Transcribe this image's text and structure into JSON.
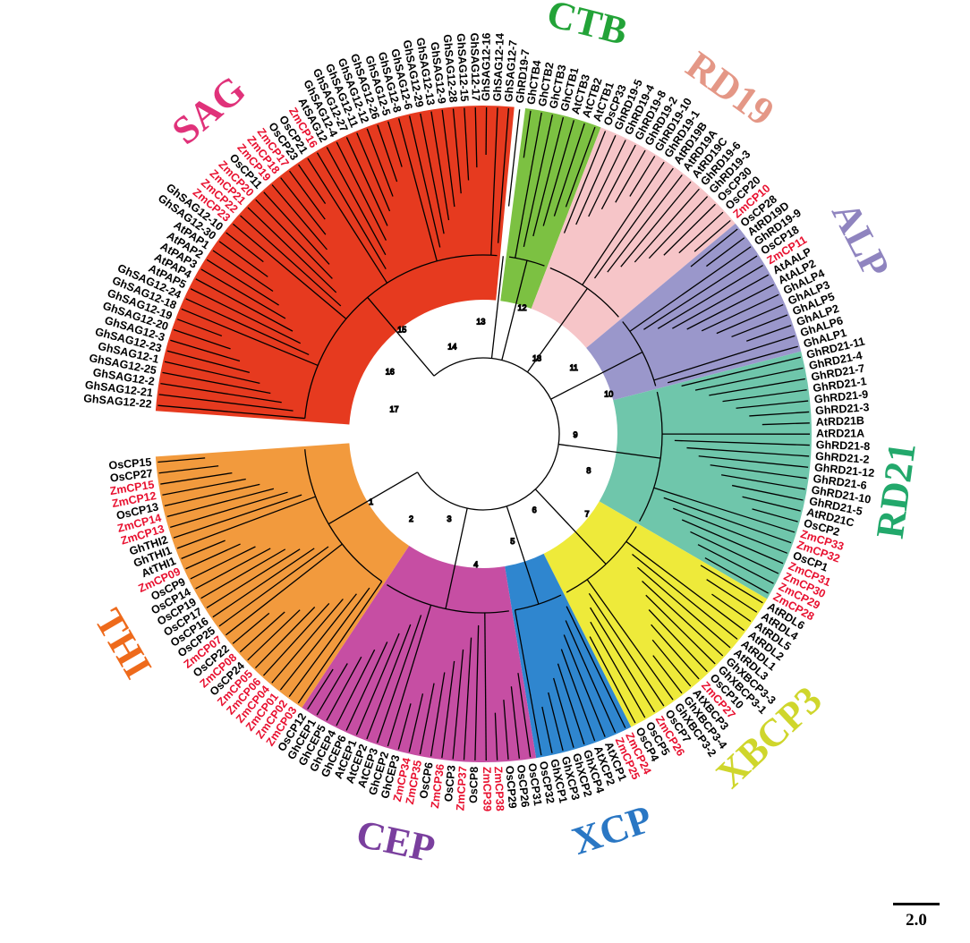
{
  "clades": [
    {
      "name": "SAG",
      "color": "#e63a1f",
      "label_color": "#e0327a"
    },
    {
      "name": "THI",
      "color": "#f29a3d",
      "label_color": "#ee6a1b"
    },
    {
      "name": "CEP",
      "color": "#c64ea3",
      "label_color": "#7a3f9e"
    },
    {
      "name": "XCP",
      "color": "#2f86cf",
      "label_color": "#2a77c4"
    },
    {
      "name": "XBCP3",
      "color": "#eeea3a",
      "label_color": "#cfd62c"
    },
    {
      "name": "RD21",
      "color": "#6fc6ab",
      "label_color": "#22a86b"
    },
    {
      "name": "ALP",
      "color": "#9a97cb",
      "label_color": "#8f84bf"
    },
    {
      "name": "RD19",
      "color": "#f6c5c8",
      "label_color": "#e49786"
    },
    {
      "name": "CTB",
      "color": "#7cc142",
      "label_color": "#23a338"
    }
  ],
  "leaves": [
    {
      "clade": "SAG",
      "names": [
        "GhSAG12-22",
        "GhSAG12-21",
        "GhSAG12-2",
        "GhSAG12-25",
        "GhSAG12-1",
        "GhSAG12-23",
        "GhSAG12-3",
        "GhSAG12-20",
        "GhSAG12-19",
        "GhSAG12-18",
        "GhSAG12-24",
        "AtPAP5",
        "AtPAP4",
        "AtPAP3",
        "AtPAP2",
        "AtPAP1",
        "GhSAG12-30",
        "GhSAG12-10",
        "ZmCP23",
        "ZmCP22",
        "ZmCP21",
        "ZmCP20",
        "OsCP11",
        "ZmCP19",
        "ZmCP18",
        "ZmCP17",
        "OsCP23",
        "OsCP21",
        "ZmCP16",
        "AtSAG12",
        "GhSAG12-4",
        "GhSAG12-27",
        "GhSAG12-11",
        "GhSAG12-12",
        "GhSAG12-26",
        "GhSAG12-5",
        "GhSAG12-8",
        "GhSAG12-6",
        "GhSAG12-29",
        "GhSAG12-13",
        "GhSAG12-9",
        "GhSAG12-28",
        "GhSAG12-15",
        "GhSAG12-17",
        "GhSAG12-16",
        "GhSAG12-14",
        "GhSAG12-7"
      ]
    },
    {
      "clade": "",
      "names": [
        "GhRD19-7"
      ]
    },
    {
      "clade": "CTB",
      "names": [
        "GhCTB4",
        "GhCTB2",
        "GhCTB3",
        "GhCTB1",
        "AtCTB3",
        "AtCTB2",
        "AtCTB1"
      ]
    },
    {
      "clade": "RD19",
      "names": [
        "OsCP33",
        "GhRD19-5",
        "GhRD19-4",
        "GhRD19-8",
        "GhRD19-2",
        "GhRD19-10",
        "GhRD19-1",
        "AtRD19B",
        "AtRD19A",
        "AtRD19C",
        "GhRD19-6",
        "GhRD19-3",
        "OsCP30",
        "OsCP20",
        "ZmCP10"
      ]
    },
    {
      "clade": "ALP",
      "names": [
        "OsCP28",
        "AtRD19D",
        "GhRD19-9",
        "OsCP18",
        "ZmCP11",
        "AtAALP",
        "AtALP2",
        "GhALP4",
        "GhALP3",
        "GhALP5",
        "GhALP2",
        "GhALP6",
        "GhALP1"
      ]
    },
    {
      "clade": "RD21",
      "names": [
        "GhRD21-11",
        "GhRD21-4",
        "GhRD21-7",
        "GhRD21-1",
        "GhRD21-9",
        "GhRD21-3",
        "AtRD21B",
        "AtRD21A",
        "GhRD21-8",
        "GhRD21-2",
        "GhRD21-12",
        "GhRD21-6",
        "GhRD21-10",
        "GhRD21-5",
        "AtRD21C",
        "OsCP2",
        "ZmCP33",
        "ZmCP32",
        "OsCP1",
        "ZmCP31",
        "ZmCP30",
        "ZmCP29",
        "ZmCP28"
      ]
    },
    {
      "clade": "XBCP3",
      "names": [
        "AtRDL6",
        "AtRDL4",
        "AtRDL5",
        "AtRDL2",
        "AtRDL1",
        "AtRDL3",
        "GhXBCP3-3",
        "GhXBCP3-1",
        "OsCP10",
        "ZmCP27",
        "AtXBCP3",
        "GhXBCP3-4",
        "GhXBCP3-2",
        "OsCP7",
        "ZmCP26",
        "OsCP5",
        "OsCP4"
      ]
    },
    {
      "clade": "XCP",
      "names": [
        "ZmCP24",
        "ZmCP25",
        "AtXCP1",
        "AtXCP2",
        "GhXCP4",
        "GhXCP2",
        "GhXCP3",
        "GhXCP1",
        "OsCP32"
      ]
    },
    {
      "clade": "CEP",
      "names": [
        "OsCP31",
        "OsCP26",
        "OsCP29",
        "ZmCP38",
        "ZmCP39",
        "OsCP8",
        "ZmCP37",
        "OsCP3",
        "ZmCP36",
        "OsCP6",
        "ZmCP35",
        "ZmCP34",
        "GhCEP3",
        "GhCEP2",
        "AtCEP3",
        "AtCEP2",
        "AtCEP1",
        "GhCEP6",
        "GhCEP4",
        "GhCEP5",
        "GhCEP1",
        "OsCP12"
      ]
    },
    {
      "clade": "THI",
      "names": [
        "ZmCP03",
        "ZmCP02",
        "ZmCP01",
        "ZmCP04",
        "ZmCP06",
        "ZmCP05",
        "OsCP24",
        "ZmCP08",
        "OsCP22",
        "ZmCP07",
        "OsCP25",
        "OsCP16",
        "OsCP17",
        "OsCP19",
        "OsCP14",
        "OsCP9",
        "ZmCP09",
        "AtTHI1",
        "GhTHI1",
        "GhTHI2",
        "ZmCP13",
        "ZmCP14",
        "OsCP13",
        "ZmCP12",
        "ZmCP15",
        "OsCP27",
        "OsCP15"
      ]
    }
  ],
  "internal_nodes": [
    "17",
    "16",
    "15",
    "14",
    "13",
    "12",
    "13",
    "11",
    "10",
    "9",
    "8",
    "7",
    "6",
    "5",
    "4",
    "3",
    "2",
    "1"
  ],
  "scale_bar_label": "2.0",
  "colors": {
    "highlight_text": "#e8102f",
    "default_text": "#000000"
  }
}
